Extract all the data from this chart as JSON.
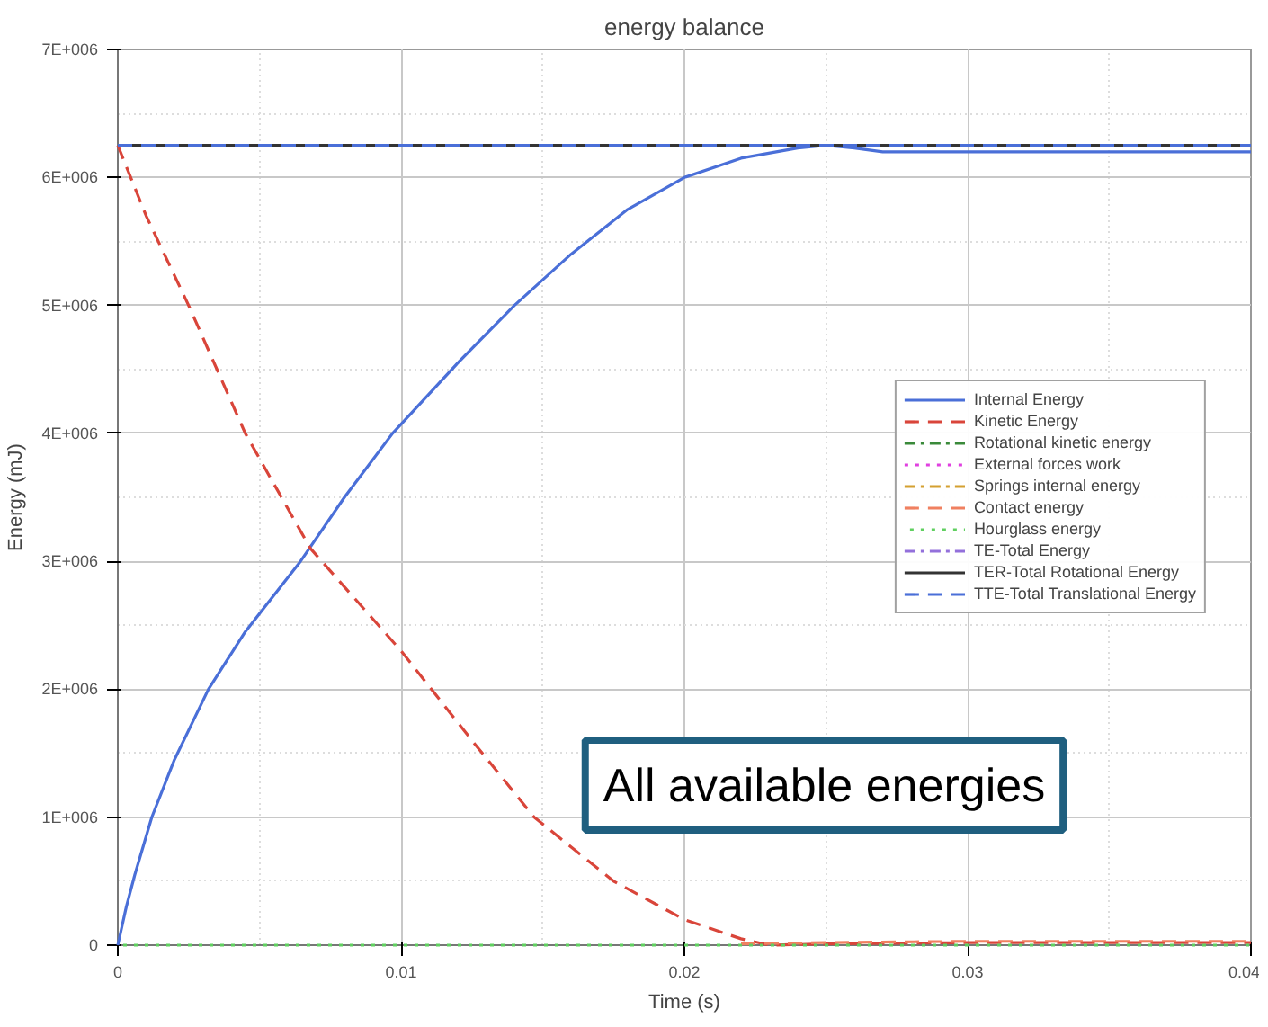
{
  "chart_data": {
    "type": "line",
    "title": "energy balance",
    "xlabel": "Time (s)",
    "ylabel": "Energy (mJ)",
    "xlim": [
      0,
      0.04
    ],
    "ylim": [
      0,
      7000000
    ],
    "xticks": [
      0,
      0.01,
      0.02,
      0.03,
      0.04
    ],
    "yticks": [
      {
        "value": 0,
        "label": "0"
      },
      {
        "value": 1000000,
        "label": "1E+006"
      },
      {
        "value": 2000000,
        "label": "2E+006"
      },
      {
        "value": 3000000,
        "label": "3E+006"
      },
      {
        "value": 4000000,
        "label": "4E+006"
      },
      {
        "value": 5000000,
        "label": "5E+006"
      },
      {
        "value": 6000000,
        "label": "6E+006"
      },
      {
        "value": 7000000,
        "label": "7E+006"
      }
    ],
    "grid": true,
    "legend": "right",
    "annotations": [
      "All available energies"
    ],
    "series": [
      {
        "name": "Internal Energy",
        "color": "#4a6fd8",
        "line_style": "solid",
        "x": [
          0,
          0.0003,
          0.0006,
          0.0012,
          0.002,
          0.0032,
          0.0045,
          0.00645,
          0.008,
          0.0097,
          0.012,
          0.014,
          0.016,
          0.018,
          0.02,
          0.022,
          0.024,
          0.025,
          0.026,
          0.027,
          0.03,
          0.035,
          0.04
        ],
        "values": [
          0,
          300000,
          550000,
          1000000,
          1450000,
          2000000,
          2450000,
          3000000,
          3500000,
          4000000,
          4550000,
          5000000,
          5400000,
          5750000,
          6000000,
          6150000,
          6230000,
          6250000,
          6230000,
          6200000,
          6200000,
          6200000,
          6200000
        ]
      },
      {
        "name": "Kinetic Energy",
        "color": "#d9453a",
        "line_style": "dashed",
        "x": [
          0,
          0.001,
          0.0025,
          0.0045,
          0.0068,
          0.01,
          0.0125,
          0.0147,
          0.0175,
          0.02,
          0.022,
          0.023,
          0.025,
          0.03,
          0.035,
          0.04
        ],
        "values": [
          6250000,
          5700000,
          5000000,
          4000000,
          3100000,
          2300000,
          1600000,
          1000000,
          500000,
          200000,
          50000,
          0,
          10000,
          20000,
          20000,
          20000
        ]
      },
      {
        "name": "Rotational kinetic energy",
        "color": "#3a8a3a",
        "line_style": "dashdot",
        "values": [
          null,
          null
        ]
      },
      {
        "name": "External forces work",
        "color": "#e040e0",
        "line_style": "dotted",
        "values": [
          null,
          null
        ]
      },
      {
        "name": "Springs internal energy",
        "color": "#d4a030",
        "line_style": "dashdot",
        "values": [
          null,
          null
        ]
      },
      {
        "name": "Contact energy",
        "color": "#f08060",
        "line_style": "dashed",
        "x": [
          0.022,
          0.025,
          0.03,
          0.04
        ],
        "values": [
          10000,
          20000,
          30000,
          30000
        ]
      },
      {
        "name": "Hourglass energy",
        "color": "#60d060",
        "line_style": "dotted",
        "x": [
          0,
          0.04
        ],
        "values": [
          0,
          0
        ]
      },
      {
        "name": "TE-Total Energy",
        "color": "#9370db",
        "line_style": "dashdot",
        "values": [
          null,
          null
        ]
      },
      {
        "name": "TER-Total Rotational Energy",
        "color": "#333333",
        "line_style": "solid",
        "x": [
          0,
          0.04
        ],
        "values": [
          6250000,
          6250000
        ]
      },
      {
        "name": "TTE-Total Translational Energy",
        "color": "#4a6fd8",
        "line_style": "dashed",
        "x": [
          0,
          0.04
        ],
        "values": [
          6250000,
          6250000
        ]
      }
    ]
  }
}
